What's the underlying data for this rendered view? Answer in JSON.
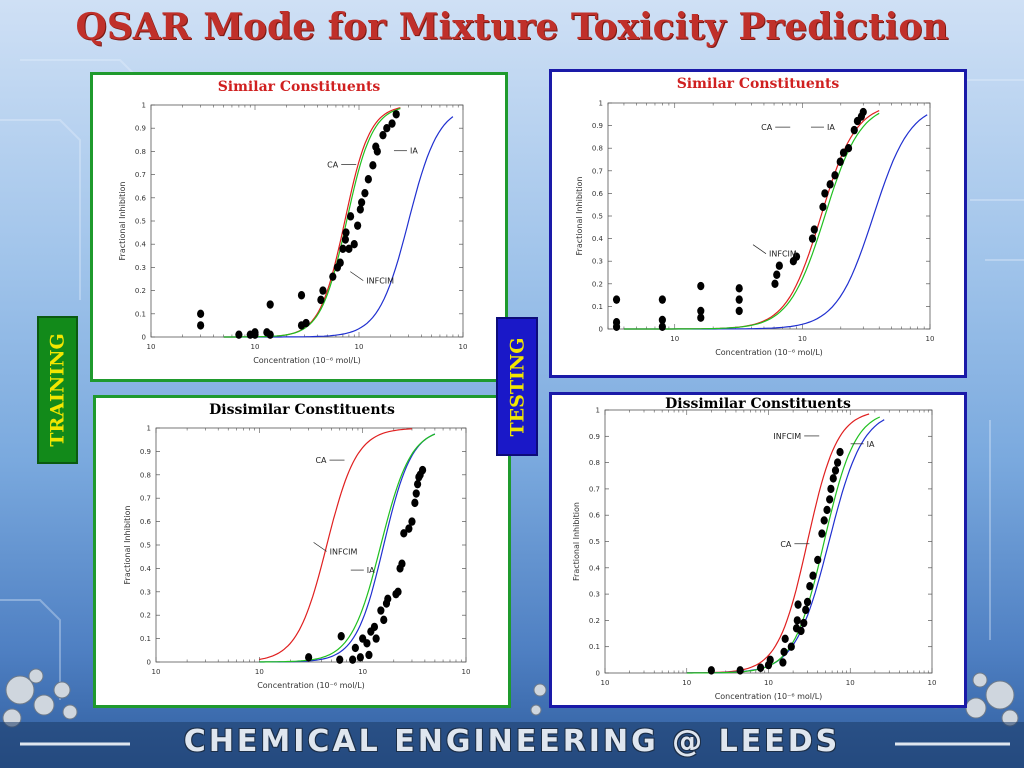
{
  "title": "QSAR Mode for Mixture Toxicity Prediction",
  "side_labels": {
    "training": "TRAINING",
    "testing": "TESTING"
  },
  "footer": "CHEMICAL ENGINEERING @ LEEDS",
  "colors": {
    "title": "#c0302a",
    "training_border": "#1f9a2d",
    "testing_border": "#1a1aa8",
    "training_label_bg": "#128a1a",
    "training_label_text": "#f2e600",
    "testing_label_bg": "#1a18c8",
    "testing_label_text": "#f2e600",
    "ca_curve": "#e02020",
    "ia_curve": "#2030d0",
    "infcim_curve": "#20c020",
    "points": "#000000"
  },
  "chart_data": [
    {
      "id": "training-similar",
      "type": "scatter",
      "title": "Similar Constituents",
      "xlabel": "Concentration (10⁻⁶ mol/L)",
      "ylabel": "Fractional Inhibition",
      "xscale": "log",
      "xlim": [
        0.1,
        100
      ],
      "ylim": [
        0,
        1
      ],
      "x_ticks": [
        0.1,
        1,
        10,
        100
      ],
      "y_ticks": [
        0,
        0.1,
        0.2,
        0.3,
        0.4,
        0.5,
        0.6,
        0.7,
        0.8,
        0.9,
        1
      ],
      "series": [
        {
          "name": "CA",
          "kind": "curve",
          "color": "#e02020",
          "ec50": 7.3,
          "slope": 3.6,
          "xrange": [
            0.5,
            25
          ]
        },
        {
          "name": "IA",
          "kind": "curve",
          "color": "#2030d0",
          "ec50": 30,
          "slope": 3.0,
          "xrange": [
            0.5,
            80
          ]
        },
        {
          "name": "INFCIM",
          "kind": "curve",
          "color": "#20c020",
          "ec50": 7.6,
          "slope": 3.5,
          "xrange": [
            0.5,
            25
          ]
        },
        {
          "name": "",
          "kind": "points",
          "color": "#000000",
          "x": [
            0.3,
            0.3,
            0.7,
            0.9,
            1.0,
            1.0,
            1.4,
            1.3,
            1.4,
            2.8,
            2.8,
            3.1,
            4.3,
            4.5,
            5.6,
            6.2,
            6.6,
            7.0,
            7.4,
            7.5,
            8.0,
            8.3,
            9.0,
            9.7,
            10.3,
            10.6,
            11.4,
            12.3,
            13.6,
            14.5,
            15.0,
            17.0,
            18.5,
            20.8,
            22.8
          ],
          "y": [
            0.05,
            0.1,
            0.01,
            0.01,
            0.01,
            0.02,
            0.14,
            0.02,
            0.01,
            0.18,
            0.05,
            0.06,
            0.16,
            0.2,
            0.26,
            0.3,
            0.32,
            0.38,
            0.42,
            0.45,
            0.38,
            0.52,
            0.4,
            0.48,
            0.55,
            0.58,
            0.62,
            0.68,
            0.74,
            0.82,
            0.8,
            0.87,
            0.9,
            0.92,
            0.96
          ]
        }
      ],
      "annotations": [
        "CA",
        "IA",
        "INFCIM"
      ]
    },
    {
      "id": "testing-similar",
      "type": "scatter",
      "title": "Similar Constituents",
      "xlabel": "Concentration (10⁻⁶ mol/L)",
      "ylabel": "Fractional Inhibition",
      "xscale": "log",
      "xlim": [
        0.3,
        100
      ],
      "ylim": [
        0,
        1
      ],
      "x_ticks": [
        1,
        10,
        100
      ],
      "y_ticks": [
        0,
        0.1,
        0.2,
        0.3,
        0.4,
        0.5,
        0.6,
        0.7,
        0.8,
        0.9,
        1
      ],
      "series": [
        {
          "name": "CA",
          "kind": "curve",
          "color": "#e02020",
          "ec50": 14,
          "slope": 3.2,
          "xrange": [
            0.4,
            40
          ]
        },
        {
          "name": "IA",
          "kind": "curve",
          "color": "#2030d0",
          "ec50": 36,
          "slope": 3.0,
          "xrange": [
            0.4,
            95
          ]
        },
        {
          "name": "INFCIM",
          "kind": "curve",
          "color": "#20c020",
          "ec50": 15,
          "slope": 3.1,
          "xrange": [
            0.4,
            40
          ]
        },
        {
          "name": "",
          "kind": "points",
          "color": "#000000",
          "x": [
            0.35,
            0.35,
            0.35,
            0.8,
            0.8,
            0.8,
            1.6,
            1.6,
            1.6,
            3.2,
            3.2,
            3.2,
            6.1,
            6.3,
            6.6,
            8.5,
            9.0,
            12.0,
            12.4,
            14.5,
            15.0,
            16.5,
            18.0,
            19.8,
            21.0,
            23.0,
            25.5,
            27.0,
            29.0,
            30.0
          ],
          "y": [
            0.13,
            0.03,
            0.01,
            0.13,
            0.04,
            0.01,
            0.19,
            0.08,
            0.05,
            0.18,
            0.13,
            0.08,
            0.2,
            0.24,
            0.28,
            0.3,
            0.32,
            0.4,
            0.44,
            0.54,
            0.6,
            0.64,
            0.68,
            0.74,
            0.78,
            0.8,
            0.88,
            0.92,
            0.94,
            0.96
          ]
        }
      ],
      "annotations": [
        "CA",
        "IA",
        "INFCIM"
      ]
    },
    {
      "id": "training-dissimilar",
      "type": "scatter",
      "title": "Dissimilar Constituents",
      "xlabel": "Concentration (10⁻⁶ mol/L)",
      "ylabel": "Fractional Inhibition",
      "xscale": "log",
      "xlim": [
        1,
        1000
      ],
      "ylim": [
        0,
        1
      ],
      "x_ticks": [
        1,
        10,
        100,
        1000
      ],
      "y_ticks": [
        0,
        0.1,
        0.2,
        0.3,
        0.4,
        0.5,
        0.6,
        0.7,
        0.8,
        0.9,
        1
      ],
      "series": [
        {
          "name": "CA",
          "kind": "curve",
          "color": "#e02020",
          "ec50": 45,
          "slope": 3.0,
          "xrange": [
            10,
            300
          ]
        },
        {
          "name": "IA",
          "kind": "curve",
          "color": "#2030d0",
          "ec50": 160,
          "slope": 3.2,
          "xrange": [
            10,
            500
          ]
        },
        {
          "name": "INFCIM",
          "kind": "curve",
          "color": "#20c020",
          "ec50": 150,
          "slope": 3.0,
          "xrange": [
            10,
            500
          ]
        },
        {
          "name": "",
          "kind": "points",
          "color": "#000000",
          "x": [
            30,
            60,
            62,
            80,
            85,
            95,
            100,
            110,
            115,
            120,
            130,
            135,
            150,
            160,
            170,
            175,
            210,
            220,
            230,
            240,
            250,
            280,
            300,
            320,
            330,
            340,
            350,
            360,
            380
          ],
          "y": [
            0.02,
            0.01,
            0.11,
            0.01,
            0.06,
            0.02,
            0.1,
            0.08,
            0.03,
            0.13,
            0.15,
            0.1,
            0.22,
            0.18,
            0.25,
            0.27,
            0.29,
            0.3,
            0.4,
            0.42,
            0.55,
            0.57,
            0.6,
            0.68,
            0.72,
            0.76,
            0.79,
            0.8,
            0.82
          ]
        }
      ],
      "annotations": [
        "CA",
        "IA",
        "INFCIM"
      ]
    },
    {
      "id": "testing-dissimilar",
      "type": "scatter",
      "title": "Dissimilar Constituents",
      "xlabel": "Concentration (10⁻⁶ mol/L)",
      "ylabel": "Fractional Inhibition",
      "xscale": "log",
      "xlim": [
        0.1,
        1000
      ],
      "ylim": [
        0,
        1
      ],
      "x_ticks": [
        0.1,
        1,
        10,
        100,
        1000
      ],
      "y_ticks": [
        0,
        0.1,
        0.2,
        0.3,
        0.4,
        0.5,
        0.6,
        0.7,
        0.8,
        0.9,
        1
      ],
      "series": [
        {
          "name": "CA",
          "kind": "curve",
          "color": "#e02020",
          "ec50": 30,
          "slope": 2.4,
          "xrange": [
            1,
            170
          ]
        },
        {
          "name": "IA",
          "kind": "curve",
          "color": "#2030d0",
          "ec50": 55,
          "slope": 2.1,
          "xrange": [
            1,
            260
          ]
        },
        {
          "name": "INFCIM",
          "kind": "curve",
          "color": "#20c020",
          "ec50": 48,
          "slope": 2.3,
          "xrange": [
            1,
            230
          ]
        },
        {
          "name": "",
          "kind": "points",
          "color": "#000000",
          "x": [
            2.0,
            4.5,
            8.0,
            10.0,
            10.5,
            15.0,
            15.5,
            16.0,
            19.0,
            22.0,
            22.5,
            23.0,
            25.0,
            27.0,
            28.5,
            30.0,
            32.0,
            35.0,
            40.0,
            45.0,
            48.0,
            52.0,
            56.0,
            58.0,
            62.0,
            66.0,
            70.0,
            75.0
          ],
          "y": [
            0.01,
            0.01,
            0.02,
            0.03,
            0.05,
            0.04,
            0.08,
            0.13,
            0.1,
            0.17,
            0.2,
            0.26,
            0.16,
            0.19,
            0.24,
            0.27,
            0.33,
            0.37,
            0.43,
            0.53,
            0.58,
            0.62,
            0.66,
            0.7,
            0.74,
            0.77,
            0.8,
            0.84
          ]
        }
      ],
      "annotations": [
        "CA",
        "IA",
        "INFCIM"
      ]
    }
  ]
}
